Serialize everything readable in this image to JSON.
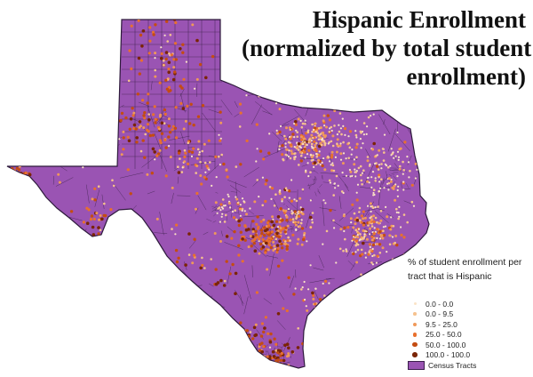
{
  "title_lines": [
    "Hispanic Enrollment",
    "(normalized by total student",
    "enrollment)"
  ],
  "legend": {
    "heading_lines": [
      "% of student enrollment per",
      "tract that is Hispanic"
    ],
    "items": [
      {
        "label": "0.0 - 0.0",
        "color": "#fbe3c6"
      },
      {
        "label": "0.0 - 9.5",
        "color": "#f6c28e"
      },
      {
        "label": "9.5 - 25.0",
        "color": "#f0995a"
      },
      {
        "label": "25.0 - 50.0",
        "color": "#e8702e"
      },
      {
        "label": "50.0 - 100.0",
        "color": "#c44c12"
      },
      {
        "label": "100.0 - 100.0",
        "color": "#7a2406"
      }
    ],
    "area_label": "Census Tracts",
    "area_color": "#9a54b3"
  }
}
